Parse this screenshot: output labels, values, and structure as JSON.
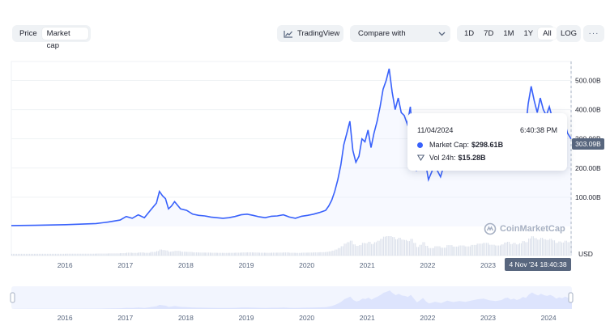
{
  "view_toggle": {
    "options": [
      "Price",
      "Market cap"
    ],
    "selected": "Market cap"
  },
  "toolbar": {
    "tradingview_label": "TradingView",
    "compare_label": "Compare with",
    "ranges": [
      "1D",
      "7D",
      "1M",
      "1Y",
      "All"
    ],
    "selected_range": "All",
    "log_label": "LOG",
    "more_label": "···"
  },
  "tooltip": {
    "date": "11/04/2024",
    "time": "6:40:38 PM",
    "market_cap_label": "Market Cap:",
    "market_cap_value": "$298.61B",
    "volume_label": "Vol 24h:",
    "volume_value": "$15.28B"
  },
  "badges": {
    "current_value": "303.09B",
    "current_date": "4 Nov '24 18:40:38",
    "currency": "USD"
  },
  "watermark": "CoinMarketCap",
  "colors": {
    "line": "#3861fb",
    "fill": "#e9eefe",
    "volume": "#cfd6e4",
    "badge": "#58667e"
  },
  "chart_data": {
    "type": "line",
    "ylabel": "",
    "xlabel": "",
    "y_ticks": [
      "100.00B",
      "200.00B",
      "300.00B",
      "400.00B",
      "500.00B"
    ],
    "x_ticks": [
      "2016",
      "2017",
      "2018",
      "2019",
      "2020",
      "2021",
      "2022",
      "2023",
      "2024"
    ],
    "navigator_ticks": [
      "2016",
      "2017",
      "2018",
      "2019",
      "2020",
      "2021",
      "2022",
      "2023",
      "2024"
    ],
    "ylim": [
      0,
      565
    ],
    "x_range": [
      2015.6,
      2024.86
    ],
    "series": [
      {
        "values_unit": "billions USD",
        "x": [
          2015.6,
          2016.0,
          2016.5,
          2017.0,
          2017.2,
          2017.4,
          2017.5,
          2017.6,
          2017.7,
          2017.8,
          2017.9,
          2018.0,
          2018.05,
          2018.1,
          2018.15,
          2018.2,
          2018.25,
          2018.3,
          2018.4,
          2018.5,
          2018.6,
          2018.7,
          2018.8,
          2018.9,
          2019.0,
          2019.1,
          2019.2,
          2019.3,
          2019.4,
          2019.5,
          2019.6,
          2019.7,
          2019.8,
          2019.9,
          2020.0,
          2020.1,
          2020.2,
          2020.3,
          2020.4,
          2020.5,
          2020.6,
          2020.7,
          2020.8,
          2020.85,
          2020.9,
          2020.95,
          2021.0,
          2021.05,
          2021.1,
          2021.15,
          2021.2,
          2021.25,
          2021.3,
          2021.35,
          2021.4,
          2021.45,
          2021.5,
          2021.55,
          2021.6,
          2021.65,
          2021.7,
          2021.75,
          2021.8,
          2021.85,
          2021.9,
          2021.95,
          2022.0,
          2022.05,
          2022.1,
          2022.15,
          2022.2,
          2022.25,
          2022.3,
          2022.35,
          2022.4,
          2022.45,
          2022.5,
          2022.6,
          2022.7,
          2022.8,
          2022.9,
          2023.0,
          2023.1,
          2023.2,
          2023.3,
          2023.4,
          2023.5,
          2023.6,
          2023.7,
          2023.75,
          2023.8,
          2023.85,
          2023.9,
          2023.95,
          2024.0,
          2024.05,
          2024.1,
          2024.15,
          2024.2,
          2024.25,
          2024.3,
          2024.35,
          2024.4,
          2024.45,
          2024.5,
          2024.55,
          2024.6,
          2024.65,
          2024.7,
          2024.75,
          2024.8,
          2024.86
        ],
        "values": [
          3,
          4,
          6,
          10,
          15,
          22,
          34,
          28,
          40,
          30,
          55,
          80,
          120,
          105,
          95,
          60,
          70,
          85,
          60,
          55,
          42,
          38,
          36,
          32,
          30,
          28,
          30,
          34,
          40,
          42,
          38,
          33,
          30,
          35,
          36,
          40,
          32,
          28,
          35,
          38,
          42,
          48,
          55,
          70,
          90,
          120,
          160,
          210,
          280,
          320,
          360,
          260,
          220,
          240,
          300,
          290,
          330,
          270,
          320,
          360,
          410,
          470,
          500,
          540,
          460,
          400,
          440,
          390,
          380,
          350,
          410,
          300,
          190,
          250,
          320,
          220,
          160,
          210,
          170,
          240,
          200,
          230,
          205,
          245,
          280,
          300,
          250,
          230,
          260,
          310,
          330,
          270,
          300,
          260,
          290,
          350,
          320,
          420,
          480,
          430,
          390,
          440,
          400,
          380,
          410,
          370,
          300,
          340,
          310,
          360,
          320,
          300
        ]
      }
    ]
  }
}
